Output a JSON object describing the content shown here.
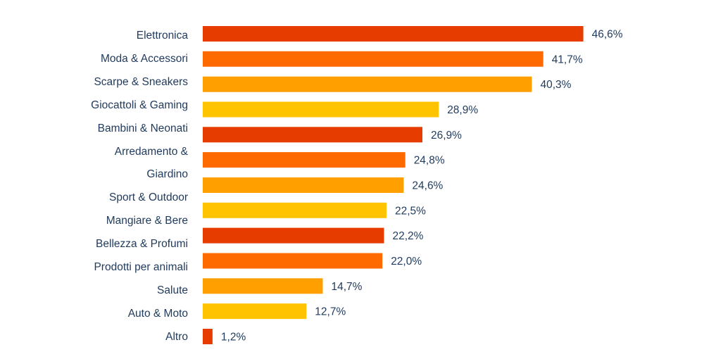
{
  "chart_data": {
    "type": "bar",
    "orientation": "horizontal",
    "categories": [
      [
        "Elettronica"
      ],
      [
        "Moda & Accessori"
      ],
      [
        "Scarpe & Sneakers"
      ],
      [
        "Giocattoli & Gaming"
      ],
      [
        "Bambini & Neonati"
      ],
      [
        "Arredamento &",
        "Giardino"
      ],
      [
        "Sport & Outdoor"
      ],
      [
        "Mangiare & Bere"
      ],
      [
        "Bellezza & Profumi"
      ],
      [
        "Prodotti per animali"
      ],
      [
        "Salute"
      ],
      [
        "Auto & Moto"
      ],
      [
        "Altro"
      ]
    ],
    "values": [
      46.6,
      41.7,
      40.3,
      28.9,
      26.9,
      24.8,
      24.6,
      22.5,
      22.2,
      22.0,
      14.7,
      12.7,
      1.2
    ],
    "value_labels": [
      "46,6%",
      "41,7%",
      "40,3%",
      "28,9%",
      "26,9%",
      "24,8%",
      "24,6%",
      "22,5%",
      "22,2%",
      "22,0%",
      "14,7%",
      "12,7%",
      "1,2%"
    ],
    "colors": [
      "#e63c00",
      "#ff6a00",
      "#ffa000",
      "#ffc300"
    ],
    "xlim": [
      0,
      50
    ],
    "grid": false,
    "legend": "none"
  }
}
